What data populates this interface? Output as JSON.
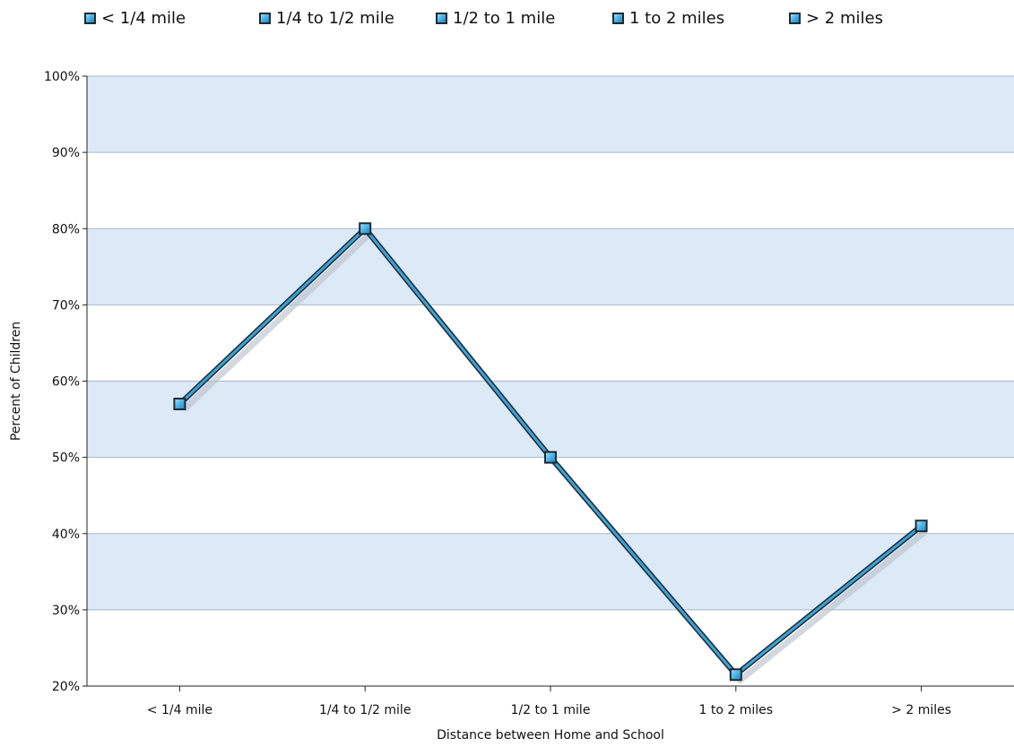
{
  "chart_data": {
    "type": "line",
    "title": "",
    "xlabel": "Distance between Home and School",
    "ylabel": "Percent of Children",
    "categories": [
      "< 1/4 mile",
      "1/4 to 1/2 mile",
      "1/2 to 1 mile",
      "1 to 2 miles",
      "> 2 miles"
    ],
    "series": [
      {
        "values": [
          57,
          80,
          50,
          21.5,
          41
        ]
      }
    ],
    "ylim": [
      20,
      100
    ],
    "yticks": [
      "20%",
      "30%",
      "40%",
      "50%",
      "60%",
      "70%",
      "80%",
      "90%",
      "100%"
    ],
    "ytick_values": [
      20,
      30,
      40,
      50,
      60,
      70,
      80,
      90,
      100
    ],
    "legend": {
      "placement": "top",
      "entries": [
        "< 1/4 mile",
        "1/4 to 1/2 mile",
        "1/2 to 1 mile",
        "1 to 2 miles",
        "> 2 miles"
      ]
    },
    "grid": true,
    "band_color": "#dce9f7",
    "grid_color": "#a9b8c9",
    "line_color": "#3aa3d8",
    "line_outline_color": "#1d2a33",
    "marker_color": "#3aa3d8"
  }
}
